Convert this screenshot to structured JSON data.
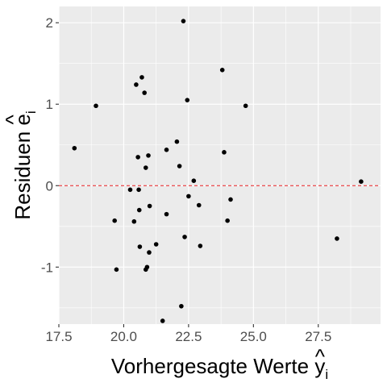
{
  "chart_data": {
    "type": "scatter",
    "title": "",
    "xlabel": {
      "main": "Vorhergesagte Werte ",
      "sym": "y",
      "hat": "^",
      "sub": "i"
    },
    "ylabel": {
      "main": "Residuen ",
      "sym": "e",
      "hat": "^",
      "sub": "i"
    },
    "xlim": [
      17.5,
      29.9
    ],
    "ylim": [
      -1.7,
      2.2
    ],
    "xticks": [
      17.5,
      20.0,
      22.5,
      25.0,
      27.5
    ],
    "xtick_labels": [
      "17.5",
      "20.0",
      "22.5",
      "25.0",
      "27.5"
    ],
    "yticks": [
      -1,
      0,
      1,
      2
    ],
    "ytick_labels": [
      "-1",
      "0",
      "1",
      "2"
    ],
    "grid": true,
    "colors": {
      "panel": "#ebebeb",
      "grid": "#ffffff",
      "point": "#000000",
      "refline": "#e41a1c"
    },
    "reference_line": {
      "y": 0,
      "style": "dashed"
    },
    "points": [
      {
        "x": 18.1,
        "y": 0.46
      },
      {
        "x": 18.93,
        "y": 0.98
      },
      {
        "x": 19.65,
        "y": -0.43
      },
      {
        "x": 19.72,
        "y": -1.03
      },
      {
        "x": 20.25,
        "y": -0.05
      },
      {
        "x": 20.4,
        "y": -0.44
      },
      {
        "x": 20.48,
        "y": 1.24
      },
      {
        "x": 20.55,
        "y": 0.35
      },
      {
        "x": 20.58,
        "y": -0.05
      },
      {
        "x": 20.6,
        "y": -0.3
      },
      {
        "x": 20.62,
        "y": -0.75
      },
      {
        "x": 20.7,
        "y": 1.33
      },
      {
        "x": 20.8,
        "y": 1.14
      },
      {
        "x": 20.85,
        "y": 0.22
      },
      {
        "x": 20.85,
        "y": -1.03
      },
      {
        "x": 20.9,
        "y": -1.0
      },
      {
        "x": 20.95,
        "y": 0.37
      },
      {
        "x": 20.98,
        "y": -0.82
      },
      {
        "x": 21.0,
        "y": -0.25
      },
      {
        "x": 21.25,
        "y": -0.72
      },
      {
        "x": 21.5,
        "y": -1.66
      },
      {
        "x": 21.65,
        "y": 0.44
      },
      {
        "x": 21.65,
        "y": -0.35
      },
      {
        "x": 22.05,
        "y": 0.54
      },
      {
        "x": 22.15,
        "y": 0.24
      },
      {
        "x": 22.22,
        "y": -1.48
      },
      {
        "x": 22.3,
        "y": 2.02
      },
      {
        "x": 22.35,
        "y": -0.63
      },
      {
        "x": 22.45,
        "y": 1.05
      },
      {
        "x": 22.5,
        "y": -0.13
      },
      {
        "x": 22.7,
        "y": 0.06
      },
      {
        "x": 22.9,
        "y": -0.24
      },
      {
        "x": 22.95,
        "y": -0.74
      },
      {
        "x": 23.8,
        "y": 1.42
      },
      {
        "x": 23.87,
        "y": 0.41
      },
      {
        "x": 24.0,
        "y": -0.43
      },
      {
        "x": 24.12,
        "y": -0.17
      },
      {
        "x": 24.7,
        "y": 0.98
      },
      {
        "x": 28.22,
        "y": -0.65
      },
      {
        "x": 29.15,
        "y": 0.05
      }
    ]
  }
}
